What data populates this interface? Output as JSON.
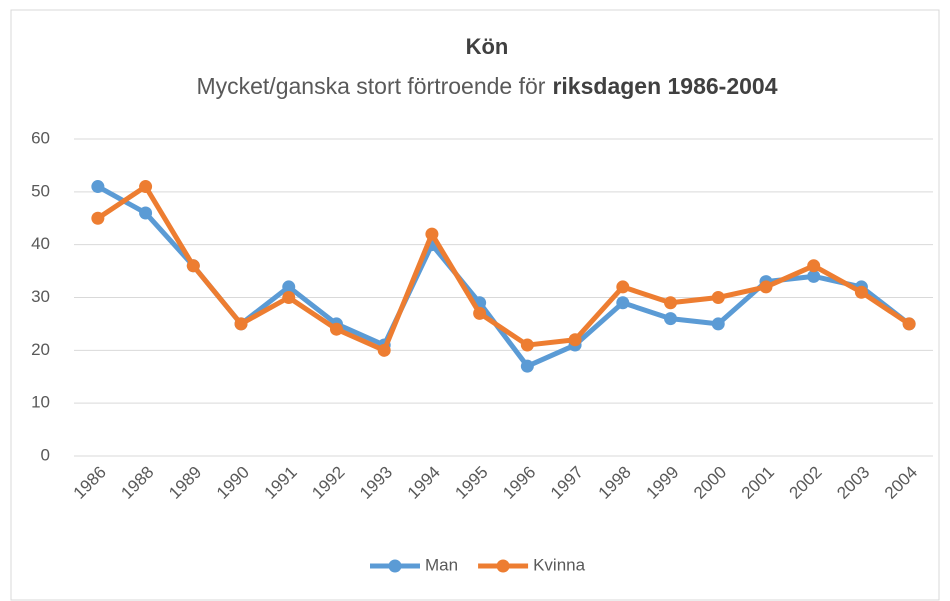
{
  "chart_data": {
    "type": "line",
    "title": "Kön",
    "subtitle": [
      "Mycket/ganska stort förtroende för",
      "riksdagen 1986-2004"
    ],
    "categories": [
      "1986",
      "1988",
      "1989",
      "1990",
      "1991",
      "1992",
      "1993",
      "1994",
      "1995",
      "1996",
      "1997",
      "1998",
      "1999",
      "2000",
      "2001",
      "2002",
      "2003",
      "2004"
    ],
    "series": [
      {
        "name": "Man",
        "color": "#5b9bd5",
        "values": [
          51,
          46,
          36,
          25,
          32,
          25,
          21,
          40,
          29,
          17,
          21,
          29,
          26,
          25,
          33,
          34,
          32,
          25
        ]
      },
      {
        "name": "Kvinna",
        "color": "#ed7d31",
        "values": [
          45,
          51,
          36,
          25,
          30,
          24,
          20,
          42,
          27,
          21,
          22,
          32,
          29,
          30,
          32,
          36,
          31,
          25
        ]
      }
    ],
    "ylim": [
      0,
      60
    ],
    "yticks": [
      0,
      10,
      20,
      30,
      40,
      50,
      60
    ],
    "grid": true,
    "legend": "bottom"
  }
}
